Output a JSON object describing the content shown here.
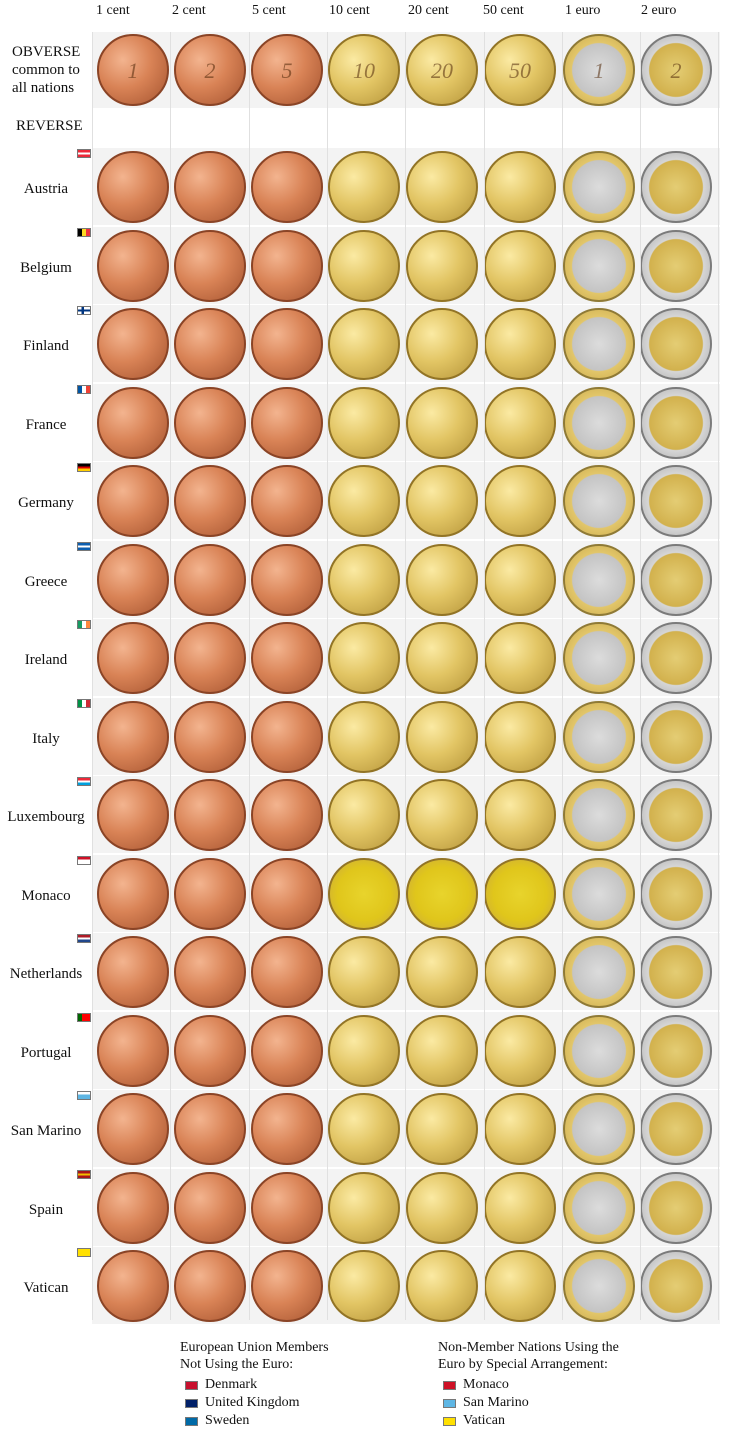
{
  "denominations": [
    "1 cent",
    "2 cent",
    "5 cent",
    "10 cent",
    "20 cent",
    "50 cent",
    "1 euro",
    "2 euro"
  ],
  "obverse_label": {
    "line1": "OBVERSE",
    "line2": "common to",
    "line3": "all nations"
  },
  "reverse_label": "REVERSE",
  "obverse_marks": [
    "1",
    "2",
    "5",
    "10",
    "20",
    "50",
    "1",
    "2"
  ],
  "countries": [
    {
      "name": "Austria",
      "flag_colors": [
        "#ed2939",
        "#ffffff",
        "#ed2939"
      ]
    },
    {
      "name": "Belgium",
      "flag_colors": [
        "#000000",
        "#fdda24",
        "#ef3340"
      ],
      "vertical": true
    },
    {
      "name": "Finland",
      "flag_colors": [
        "#ffffff",
        "#003580",
        "#ffffff"
      ],
      "cross": true
    },
    {
      "name": "France",
      "flag_colors": [
        "#0055a4",
        "#ffffff",
        "#ef4135"
      ],
      "vertical": true
    },
    {
      "name": "Germany",
      "flag_colors": [
        "#000000",
        "#dd0000",
        "#ffce00"
      ]
    },
    {
      "name": "Greece",
      "flag_colors": [
        "#0d5eaf",
        "#ffffff",
        "#0d5eaf"
      ]
    },
    {
      "name": "Ireland",
      "flag_colors": [
        "#169b62",
        "#ffffff",
        "#ff883e"
      ],
      "vertical": true
    },
    {
      "name": "Italy",
      "flag_colors": [
        "#009246",
        "#ffffff",
        "#ce2b37"
      ],
      "vertical": true
    },
    {
      "name": "Luxembourg",
      "flag_colors": [
        "#ed2939",
        "#ffffff",
        "#00a1de"
      ]
    },
    {
      "name": "Monaco",
      "flag_colors": [
        "#ce1126",
        "#ffffff",
        "#ffffff"
      ]
    },
    {
      "name": "Netherlands",
      "flag_colors": [
        "#ae1c28",
        "#ffffff",
        "#21468b"
      ]
    },
    {
      "name": "Portugal",
      "flag_colors": [
        "#006600",
        "#ff0000",
        "#ff0000"
      ],
      "vertical": true
    },
    {
      "name": "San Marino",
      "flag_colors": [
        "#ffffff",
        "#5eb6e4",
        "#5eb6e4"
      ]
    },
    {
      "name": "Spain",
      "flag_colors": [
        "#aa151b",
        "#f1bf00",
        "#aa151b"
      ]
    },
    {
      "name": "Vatican",
      "flag_colors": [
        "#ffe000",
        "#ffe000",
        "#ffe000"
      ]
    }
  ],
  "legend_left": {
    "title_line1": "European Union Members",
    "title_line2": "Not Using the Euro:",
    "items": [
      {
        "label": "Denmark",
        "color": "#c8102e"
      },
      {
        "label": "United Kingdom",
        "color": "#012169"
      },
      {
        "label": "Sweden",
        "color": "#006aa7"
      }
    ]
  },
  "legend_right": {
    "title_line1": "Non-Member Nations Using the",
    "title_line2": "Euro by Special Arrangement:",
    "items": [
      {
        "label": "Monaco",
        "color": "#ce1126"
      },
      {
        "label": "San Marino",
        "color": "#5eb6e4"
      },
      {
        "label": "Vatican",
        "color": "#ffe000"
      }
    ]
  }
}
